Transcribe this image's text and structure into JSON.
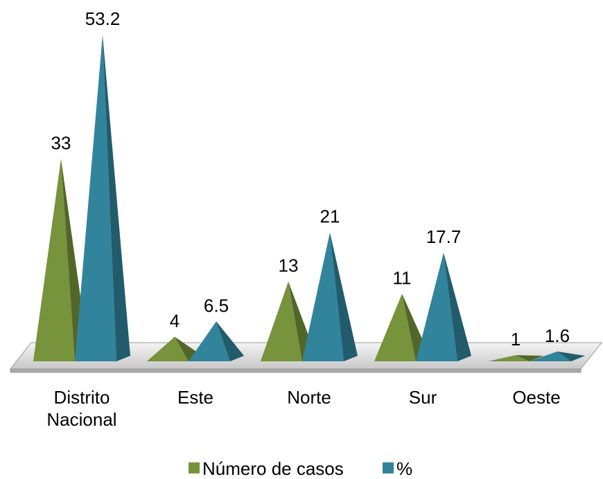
{
  "chart_data": {
    "type": "pyramid3d",
    "categories": [
      "Distrito Nacional",
      "Este",
      "Norte",
      "Sur",
      "Oeste"
    ],
    "series": [
      {
        "name": "Número de casos",
        "color": "#77933c",
        "values": [
          33,
          4,
          13,
          11,
          1
        ]
      },
      {
        "name": "%",
        "color": "#31849b",
        "values": [
          53.2,
          6.5,
          21,
          17.7,
          1.6
        ]
      }
    ],
    "legend": "bottom"
  }
}
